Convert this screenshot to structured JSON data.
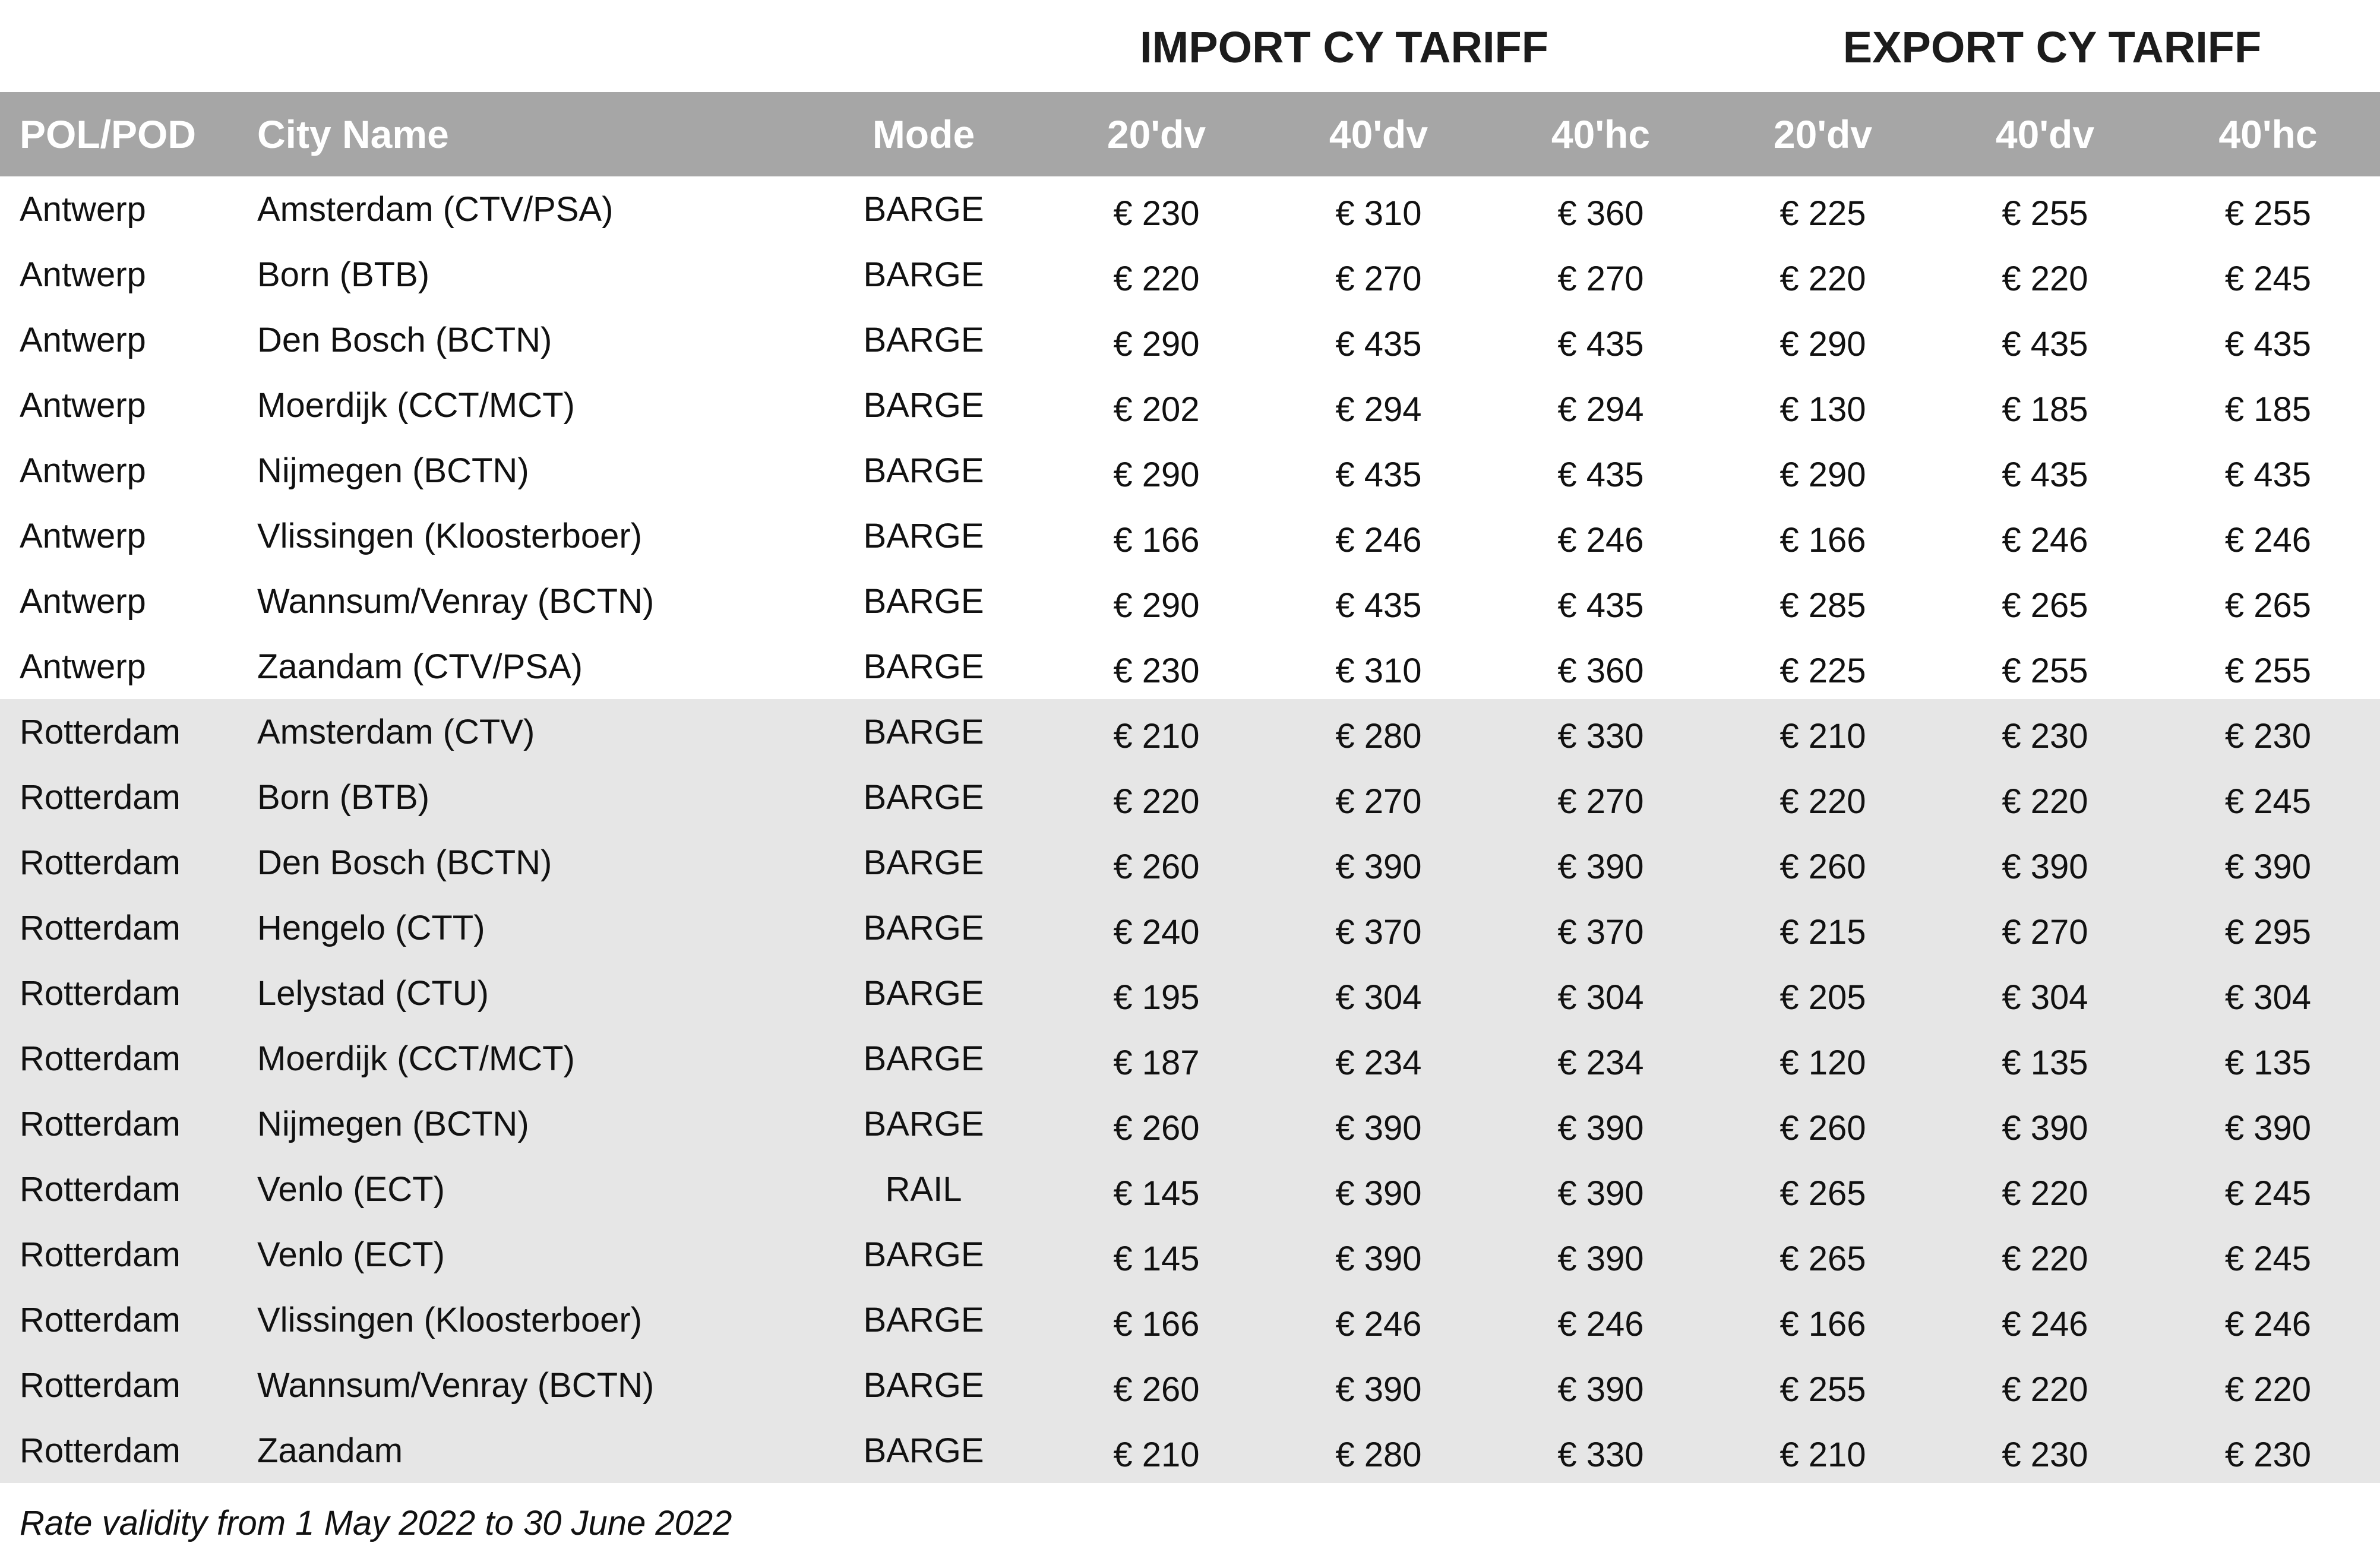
{
  "group_headers": {
    "import": "IMPORT CY TARIFF",
    "export": "EXPORT CY TARIFF"
  },
  "columns": {
    "pol_pod": "POL/POD",
    "city_name": "City Name",
    "mode": "Mode",
    "import_20dv": "20'dv",
    "import_40dv": "40'dv",
    "import_40hc": "40'hc",
    "export_20dv": "20'dv",
    "export_40dv": "40'dv",
    "export_40hc": "40'hc"
  },
  "colors": {
    "header_background": "#a6a6a6",
    "header_text": "#ffffff",
    "rotterdam_row_background": "#e6e6e6",
    "antwerp_row_background": "#ffffff"
  },
  "rows": [
    {
      "pol": "Antwerp",
      "city": "Amsterdam (CTV/PSA)",
      "mode": "BARGE",
      "i20": "€ 230",
      "i40": "€ 310",
      "i40hc": "€ 360",
      "e20": "€ 225",
      "e40": "€ 255",
      "e40hc": "€ 255"
    },
    {
      "pol": "Antwerp",
      "city": "Born (BTB)",
      "mode": "BARGE",
      "i20": "€ 220",
      "i40": "€ 270",
      "i40hc": "€ 270",
      "e20": "€ 220",
      "e40": "€ 220",
      "e40hc": "€ 245"
    },
    {
      "pol": "Antwerp",
      "city": "Den Bosch (BCTN)",
      "mode": "BARGE",
      "i20": "€ 290",
      "i40": "€ 435",
      "i40hc": "€ 435",
      "e20": "€ 290",
      "e40": "€ 435",
      "e40hc": "€ 435"
    },
    {
      "pol": "Antwerp",
      "city": "Moerdijk (CCT/MCT)",
      "mode": "BARGE",
      "i20": "€ 202",
      "i40": "€ 294",
      "i40hc": "€ 294",
      "e20": "€ 130",
      "e40": "€ 185",
      "e40hc": "€ 185"
    },
    {
      "pol": "Antwerp",
      "city": "Nijmegen (BCTN)",
      "mode": "BARGE",
      "i20": "€ 290",
      "i40": "€ 435",
      "i40hc": "€ 435",
      "e20": "€ 290",
      "e40": "€ 435",
      "e40hc": "€ 435"
    },
    {
      "pol": "Antwerp",
      "city": "Vlissingen (Kloosterboer)",
      "mode": "BARGE",
      "i20": "€ 166",
      "i40": "€ 246",
      "i40hc": "€ 246",
      "e20": "€ 166",
      "e40": "€ 246",
      "e40hc": "€ 246"
    },
    {
      "pol": "Antwerp",
      "city": "Wannsum/Venray (BCTN)",
      "mode": "BARGE",
      "i20": "€ 290",
      "i40": "€ 435",
      "i40hc": "€ 435",
      "e20": "€ 285",
      "e40": "€ 265",
      "e40hc": "€ 265"
    },
    {
      "pol": "Antwerp",
      "city": "Zaandam (CTV/PSA)",
      "mode": "BARGE",
      "i20": "€ 230",
      "i40": "€ 310",
      "i40hc": "€ 360",
      "e20": "€ 225",
      "e40": "€ 255",
      "e40hc": "€ 255"
    },
    {
      "pol": "Rotterdam",
      "city": "Amsterdam (CTV)",
      "mode": "BARGE",
      "i20": "€ 210",
      "i40": "€ 280",
      "i40hc": "€ 330",
      "e20": "€ 210",
      "e40": "€ 230",
      "e40hc": "€ 230"
    },
    {
      "pol": "Rotterdam",
      "city": "Born (BTB)",
      "mode": "BARGE",
      "i20": "€ 220",
      "i40": "€ 270",
      "i40hc": "€ 270",
      "e20": "€ 220",
      "e40": "€ 220",
      "e40hc": "€ 245"
    },
    {
      "pol": "Rotterdam",
      "city": "Den Bosch (BCTN)",
      "mode": "BARGE",
      "i20": "€ 260",
      "i40": "€ 390",
      "i40hc": "€ 390",
      "e20": "€ 260",
      "e40": "€ 390",
      "e40hc": "€ 390"
    },
    {
      "pol": "Rotterdam",
      "city": "Hengelo (CTT)",
      "mode": "BARGE",
      "i20": "€ 240",
      "i40": "€ 370",
      "i40hc": "€ 370",
      "e20": "€ 215",
      "e40": "€ 270",
      "e40hc": "€ 295"
    },
    {
      "pol": "Rotterdam",
      "city": "Lelystad (CTU)",
      "mode": "BARGE",
      "i20": "€ 195",
      "i40": "€ 304",
      "i40hc": "€ 304",
      "e20": "€ 205",
      "e40": "€ 304",
      "e40hc": "€ 304"
    },
    {
      "pol": "Rotterdam",
      "city": "Moerdijk (CCT/MCT)",
      "mode": "BARGE",
      "i20": "€ 187",
      "i40": "€ 234",
      "i40hc": "€ 234",
      "e20": "€ 120",
      "e40": "€ 135",
      "e40hc": "€ 135"
    },
    {
      "pol": "Rotterdam",
      "city": "Nijmegen (BCTN)",
      "mode": "BARGE",
      "i20": "€ 260",
      "i40": "€ 390",
      "i40hc": "€ 390",
      "e20": "€ 260",
      "e40": "€ 390",
      "e40hc": "€ 390"
    },
    {
      "pol": "Rotterdam",
      "city": "Venlo (ECT)",
      "mode": "RAIL",
      "i20": "€ 145",
      "i40": "€ 390",
      "i40hc": "€ 390",
      "e20": "€ 265",
      "e40": "€ 220",
      "e40hc": "€ 245"
    },
    {
      "pol": "Rotterdam",
      "city": "Venlo (ECT)",
      "mode": "BARGE",
      "i20": "€ 145",
      "i40": "€ 390",
      "i40hc": "€ 390",
      "e20": "€ 265",
      "e40": "€ 220",
      "e40hc": "€ 245"
    },
    {
      "pol": "Rotterdam",
      "city": "Vlissingen (Kloosterboer)",
      "mode": "BARGE",
      "i20": "€ 166",
      "i40": "€ 246",
      "i40hc": "€ 246",
      "e20": "€ 166",
      "e40": "€ 246",
      "e40hc": "€ 246"
    },
    {
      "pol": "Rotterdam",
      "city": "Wannsum/Venray (BCTN)",
      "mode": "BARGE",
      "i20": "€ 260",
      "i40": "€ 390",
      "i40hc": "€ 390",
      "e20": "€ 255",
      "e40": "€ 220",
      "e40hc": "€ 220"
    },
    {
      "pol": "Rotterdam",
      "city": "Zaandam",
      "mode": "BARGE",
      "i20": "€ 210",
      "i40": "€ 280",
      "i40hc": "€ 330",
      "e20": "€ 210",
      "e40": "€ 230",
      "e40hc": "€ 230"
    }
  ],
  "footnote": "Rate validity from 1 May 2022 to 30 June 2022"
}
